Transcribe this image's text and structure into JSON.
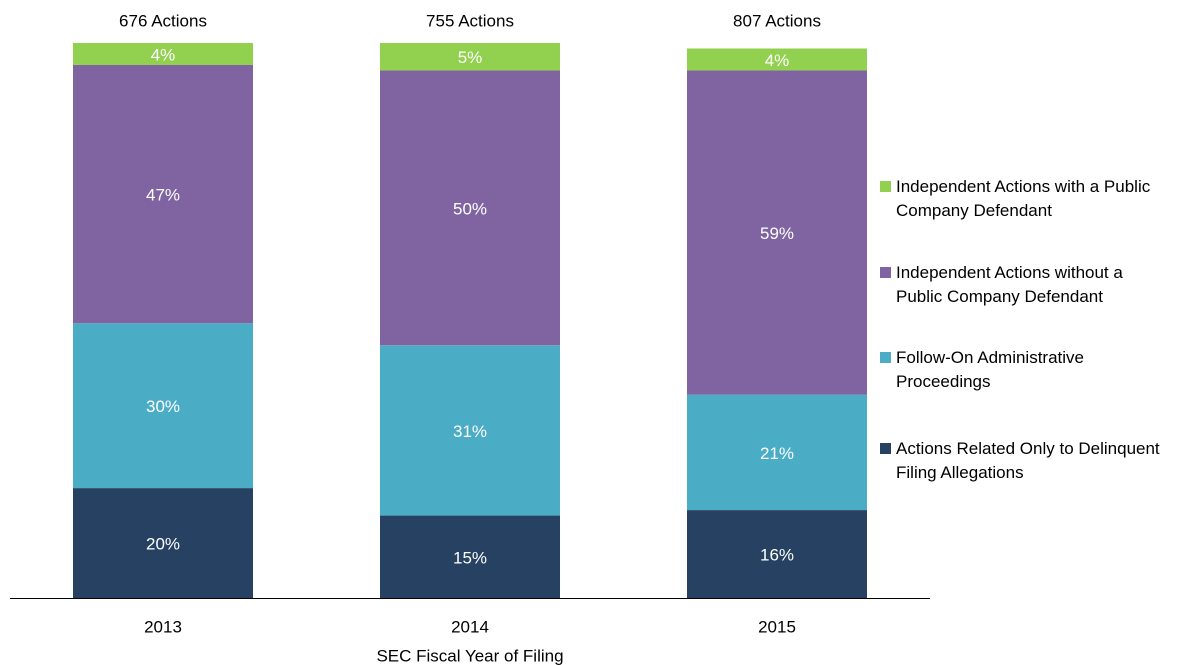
{
  "chart_data": {
    "type": "bar",
    "stacked": true,
    "x_label": "SEC Fiscal Year of Filing",
    "categories": [
      "2013",
      "2014",
      "2015"
    ],
    "totals": [
      "676 Actions",
      "755 Actions",
      "807 Actions"
    ],
    "series": [
      {
        "name": "Actions Related Only to Delinquent Filing Allegations",
        "color": "#264161",
        "values": [
          20,
          15,
          16
        ],
        "value_labels": [
          "20%",
          "15%",
          "16%"
        ]
      },
      {
        "name": "Follow-On Administrative Proceedings",
        "color": "#4bacc6",
        "values": [
          30,
          31,
          21
        ],
        "value_labels": [
          "30%",
          "31%",
          "21%"
        ]
      },
      {
        "name": "Independent Actions without a Public Company Defendant",
        "color": "#8064a2",
        "values": [
          47,
          50,
          59
        ],
        "value_labels": [
          "47%",
          "50%",
          "59%"
        ]
      },
      {
        "name": "Independent Actions with a Public Company Defendant",
        "color": "#92d050",
        "values": [
          4,
          5,
          4
        ],
        "value_labels": [
          "4%",
          "5%",
          "4%"
        ]
      }
    ],
    "legend": "right"
  }
}
